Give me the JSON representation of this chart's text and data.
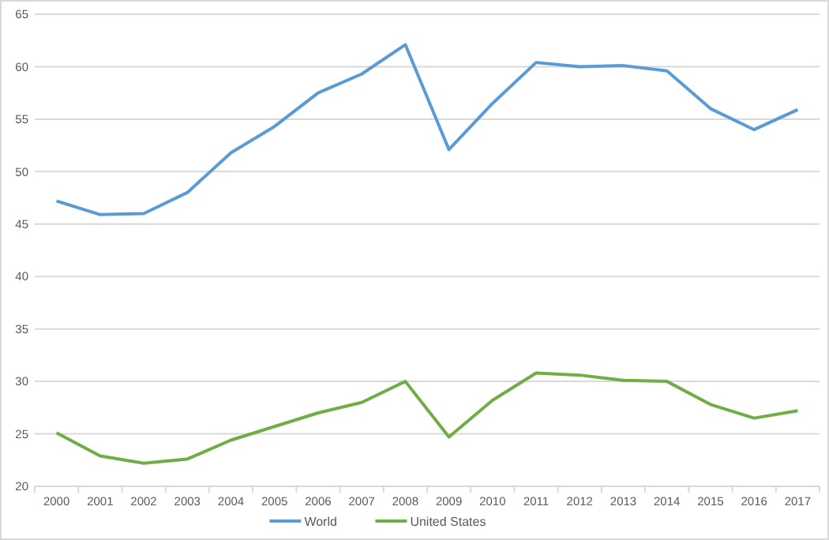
{
  "chart_data": {
    "type": "line",
    "categories": [
      "2000",
      "2001",
      "2002",
      "2003",
      "2004",
      "2005",
      "2006",
      "2007",
      "2008",
      "2009",
      "2010",
      "2011",
      "2012",
      "2013",
      "2014",
      "2015",
      "2016",
      "2017"
    ],
    "series": [
      {
        "name": "World",
        "color": "#5b9bd5",
        "values": [
          47.2,
          45.9,
          46.0,
          48.0,
          51.8,
          54.3,
          57.5,
          59.3,
          62.1,
          52.1,
          56.5,
          60.4,
          60.0,
          60.1,
          59.6,
          56.0,
          54.0,
          55.9
        ]
      },
      {
        "name": "United States",
        "color": "#70ad47",
        "values": [
          25.1,
          22.9,
          22.2,
          22.6,
          24.4,
          25.7,
          27.0,
          28.0,
          30.0,
          24.7,
          28.2,
          30.8,
          30.6,
          30.1,
          30.0,
          27.8,
          26.5,
          27.2
        ]
      }
    ],
    "ylim": [
      20,
      65
    ],
    "yticks": [
      20,
      25,
      30,
      35,
      40,
      45,
      50,
      55,
      60,
      65
    ],
    "grid": "y",
    "legend": "bottom",
    "marker": "none",
    "line_style": "solid"
  }
}
